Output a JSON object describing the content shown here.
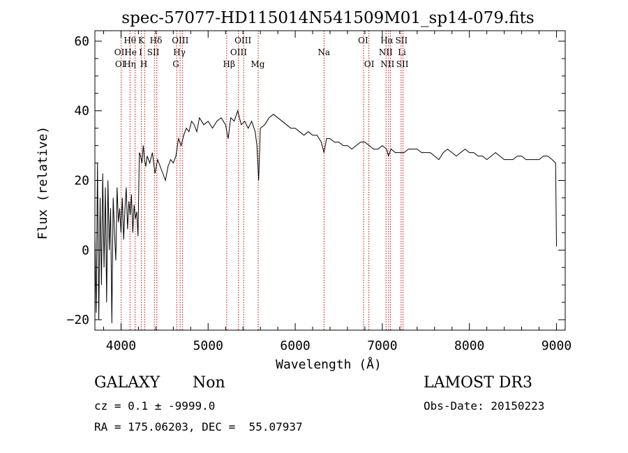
{
  "chart_data": {
    "type": "line",
    "title": "spec-57077-HD115014N541509M01_sp14-079.fits",
    "xlabel": "Wavelength (Å)",
    "ylabel": "Flux (relative)",
    "xlim": [
      3700,
      9100
    ],
    "ylim": [
      -23,
      63
    ],
    "x_ticks": [
      4000,
      5000,
      6000,
      7000,
      8000,
      9000
    ],
    "y_ticks": [
      -20,
      0,
      20,
      40,
      60
    ],
    "grid": false,
    "line_color": "#000000",
    "marker_color": "#cc0000",
    "series": [
      {
        "x": [
          3700,
          3715,
          3730,
          3745,
          3760,
          3775,
          3790,
          3805,
          3820,
          3835,
          3850,
          3865,
          3880,
          3895,
          3910,
          3925,
          3940,
          3955,
          3970,
          3985,
          4000,
          4015,
          4030,
          4045,
          4060,
          4075,
          4090,
          4105,
          4120,
          4135,
          4150,
          4165,
          4180,
          4195,
          4210,
          4225,
          4240,
          4255,
          4270,
          4285,
          4300,
          4330,
          4360,
          4390,
          4420,
          4450,
          4480,
          4510,
          4540,
          4570,
          4600,
          4630,
          4660,
          4690,
          4720,
          4750,
          4780,
          4810,
          4840,
          4870,
          4900,
          4950,
          5000,
          5050,
          5100,
          5150,
          5200,
          5230,
          5260,
          5300,
          5340,
          5380,
          5420,
          5460,
          5500,
          5540,
          5560,
          5580,
          5600,
          5650,
          5700,
          5750,
          5800,
          5850,
          5900,
          5950,
          6000,
          6050,
          6100,
          6150,
          6200,
          6250,
          6300,
          6330,
          6360,
          6400,
          6450,
          6500,
          6550,
          6600,
          6650,
          6700,
          6750,
          6800,
          6850,
          6900,
          6950,
          7000,
          7050,
          7070,
          7100,
          7150,
          7200,
          7250,
          7300,
          7350,
          7400,
          7450,
          7500,
          7550,
          7600,
          7650,
          7700,
          7750,
          7800,
          7850,
          7900,
          7950,
          8000,
          8050,
          8100,
          8150,
          8200,
          8250,
          8300,
          8350,
          8400,
          8450,
          8500,
          8550,
          8600,
          8650,
          8700,
          8750,
          8800,
          8850,
          8900,
          8950,
          8990,
          9000
        ],
        "y": [
          5,
          -18,
          25,
          -20,
          15,
          -10,
          22,
          -5,
          18,
          -15,
          20,
          0,
          12,
          -21,
          15,
          5,
          -3,
          18,
          8,
          12,
          5,
          15,
          3,
          12,
          18,
          6,
          14,
          10,
          16,
          5,
          13,
          9,
          11,
          4,
          28,
          27,
          25,
          30,
          26,
          24,
          27,
          25,
          28,
          22,
          26,
          24,
          22,
          20,
          24,
          26,
          25,
          27,
          32,
          30,
          33,
          35,
          34,
          37,
          36,
          34,
          38,
          36,
          37,
          35,
          37,
          38,
          36,
          32,
          38,
          37,
          40,
          36,
          37,
          35,
          37,
          34,
          30,
          20,
          35,
          36,
          38,
          39,
          38,
          37,
          36,
          35,
          35,
          34,
          33,
          34,
          33,
          33,
          31,
          28,
          32,
          32,
          31,
          31,
          30,
          30,
          29,
          30,
          31,
          31,
          30,
          29,
          29,
          30,
          29,
          27,
          29,
          28,
          28,
          28,
          29,
          29,
          29,
          28,
          28,
          28,
          27,
          26,
          28,
          29,
          28,
          27,
          28,
          29,
          28,
          28,
          27,
          27,
          26,
          27,
          28,
          27,
          26,
          26,
          26,
          27,
          27,
          26,
          26,
          26,
          26,
          27,
          27,
          26,
          25,
          1
        ]
      }
    ],
    "line_labels": [
      {
        "text": "Hθ",
        "row": 1,
        "x": 4102
      },
      {
        "text": "K",
        "row": 1,
        "x": 4233
      },
      {
        "text": "Hδ",
        "row": 1,
        "x": 4401
      },
      {
        "text": "OIII",
        "row": 1,
        "x": 4680
      },
      {
        "text": "OIII",
        "row": 1,
        "x": 5400
      },
      {
        "text": "OI",
        "row": 1,
        "x": 6780
      },
      {
        "text": "Hα",
        "row": 1,
        "x": 7053
      },
      {
        "text": "SII",
        "row": 1,
        "x": 7220
      },
      {
        "text": "OII",
        "row": 2,
        "x": 4000
      },
      {
        "text": "He",
        "row": 2,
        "x": 4110
      },
      {
        "text": "I",
        "row": 2,
        "x": 4225
      },
      {
        "text": "SII",
        "row": 2,
        "x": 4370
      },
      {
        "text": "Hγ",
        "row": 2,
        "x": 4670
      },
      {
        "text": "OIII",
        "row": 2,
        "x": 5350
      },
      {
        "text": "Na",
        "row": 2,
        "x": 6330
      },
      {
        "text": "NII",
        "row": 2,
        "x": 7040
      },
      {
        "text": "Li",
        "row": 2,
        "x": 7225
      },
      {
        "text": "OI",
        "row": 3,
        "x": 3990
      },
      {
        "text": "Hη",
        "row": 3,
        "x": 4100
      },
      {
        "text": "H",
        "row": 3,
        "x": 4262
      },
      {
        "text": "G",
        "row": 3,
        "x": 4630
      },
      {
        "text": "Hβ",
        "row": 3,
        "x": 5240
      },
      {
        "text": "Mg",
        "row": 3,
        "x": 5570
      },
      {
        "text": "OI",
        "row": 3,
        "x": 6850
      },
      {
        "text": "NII",
        "row": 3,
        "x": 7060
      },
      {
        "text": "SII",
        "row": 3,
        "x": 7230
      }
    ],
    "line_markers": [
      4002,
      4103,
      4162,
      4234,
      4271,
      4383,
      4411,
      4640,
      4678,
      4707,
      5213,
      5348,
      5408,
      5575,
      6331,
      6785,
      6846,
      7043,
      7072,
      7094,
      7216,
      7238
    ]
  },
  "footer": {
    "class_label": "GALAXY",
    "subclass_label": "Non",
    "release_label": "LAMOST DR3",
    "cz_text": "cz = 0.1 ± -9999.0",
    "obs_date_text": "Obs-Date: 20150223",
    "radec_text": "RA = 175.06203, DEC =  55.07937"
  }
}
